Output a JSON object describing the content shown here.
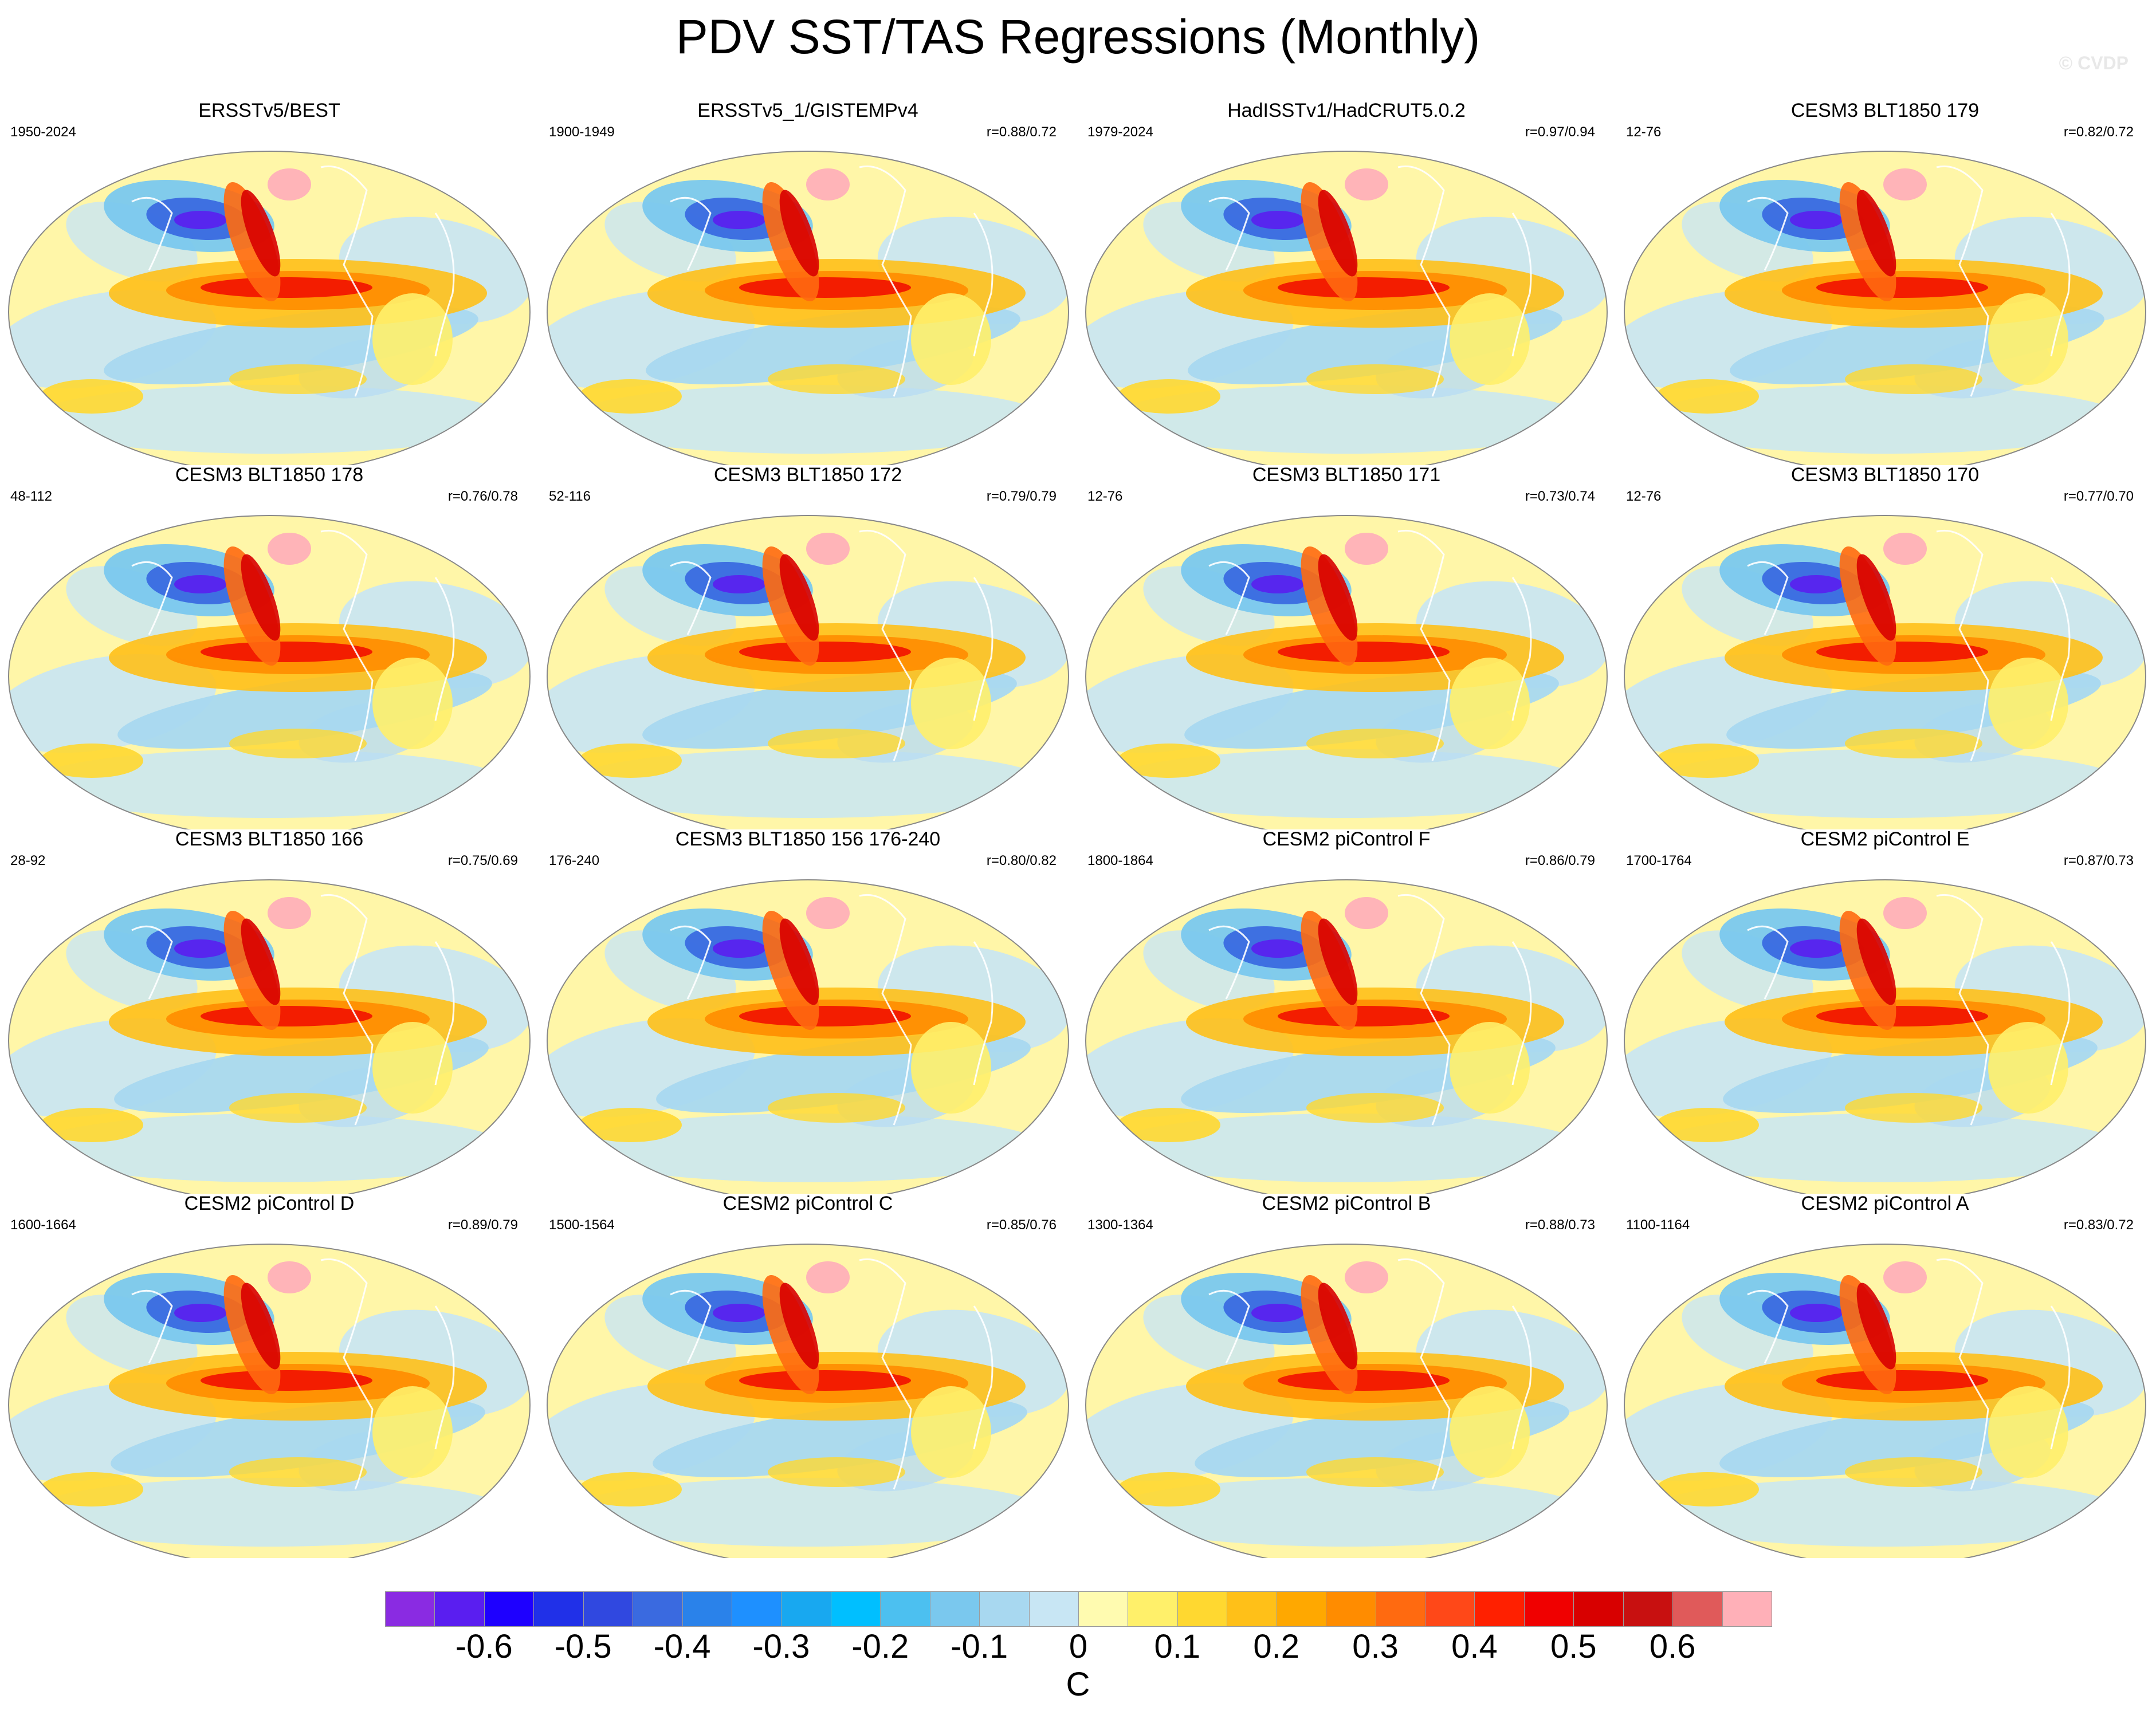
{
  "title": "PDV SST/TAS Regressions (Monthly)",
  "watermark": "© CVDP",
  "panels": [
    {
      "title": "ERSSTv5/BEST",
      "period": "1950-2024",
      "corr": ""
    },
    {
      "title": "ERSSTv5_1/GISTEMPv4",
      "period": "1900-1949",
      "corr": "r=0.88/0.72"
    },
    {
      "title": "HadISSTv1/HadCRUT5.0.2",
      "period": "1979-2024",
      "corr": "r=0.97/0.94"
    },
    {
      "title": "CESM3 BLT1850 179",
      "period": "12-76",
      "corr": "r=0.82/0.72"
    },
    {
      "title": "CESM3 BLT1850 178",
      "period": "48-112",
      "corr": "r=0.76/0.78"
    },
    {
      "title": "CESM3 BLT1850 172",
      "period": "52-116",
      "corr": "r=0.79/0.79"
    },
    {
      "title": "CESM3 BLT1850 171",
      "period": "12-76",
      "corr": "r=0.73/0.74"
    },
    {
      "title": "CESM3 BLT1850 170",
      "period": "12-76",
      "corr": "r=0.77/0.70"
    },
    {
      "title": "CESM3 BLT1850 166",
      "period": "28-92",
      "corr": "r=0.75/0.69"
    },
    {
      "title": "CESM3 BLT1850 156 176-240",
      "period": "176-240",
      "corr": "r=0.80/0.82"
    },
    {
      "title": "CESM2 piControl F",
      "period": "1800-1864",
      "corr": "r=0.86/0.79"
    },
    {
      "title": "CESM2 piControl E",
      "period": "1700-1764",
      "corr": "r=0.87/0.73"
    },
    {
      "title": "CESM2 piControl D",
      "period": "1600-1664",
      "corr": "r=0.89/0.79"
    },
    {
      "title": "CESM2 piControl C",
      "period": "1500-1564",
      "corr": "r=0.85/0.76"
    },
    {
      "title": "CESM2 piControl B",
      "period": "1300-1364",
      "corr": "r=0.88/0.73"
    },
    {
      "title": "CESM2 piControl A",
      "period": "1100-1164",
      "corr": "r=0.83/0.72"
    }
  ],
  "colorbar": {
    "unit": "C",
    "colors": [
      "#8a2be2",
      "#5a1ef0",
      "#1e00ff",
      "#2030e8",
      "#3048e0",
      "#3a6ae0",
      "#2a82ea",
      "#1e90ff",
      "#18a8f0",
      "#00bfff",
      "#4cc0f0",
      "#7ac8ee",
      "#a8d8f0",
      "#c8e6f4",
      "#fffbb0",
      "#fff06a",
      "#ffd830",
      "#ffc018",
      "#ffa800",
      "#ff8c00",
      "#ff6a10",
      "#ff4818",
      "#ff2000",
      "#f00000",
      "#d80000",
      "#c81010",
      "#e05a5a",
      "#ffb0b8"
    ],
    "ticks": [
      "-0.6",
      "-0.5",
      "-0.4",
      "-0.3",
      "-0.2",
      "-0.1",
      "0",
      "0.1",
      "0.2",
      "0.3",
      "0.4",
      "0.5",
      "0.6"
    ],
    "tick_boundaries": [
      2,
      4,
      6,
      8,
      10,
      12,
      14,
      16,
      18,
      20,
      22,
      24,
      26
    ]
  }
}
